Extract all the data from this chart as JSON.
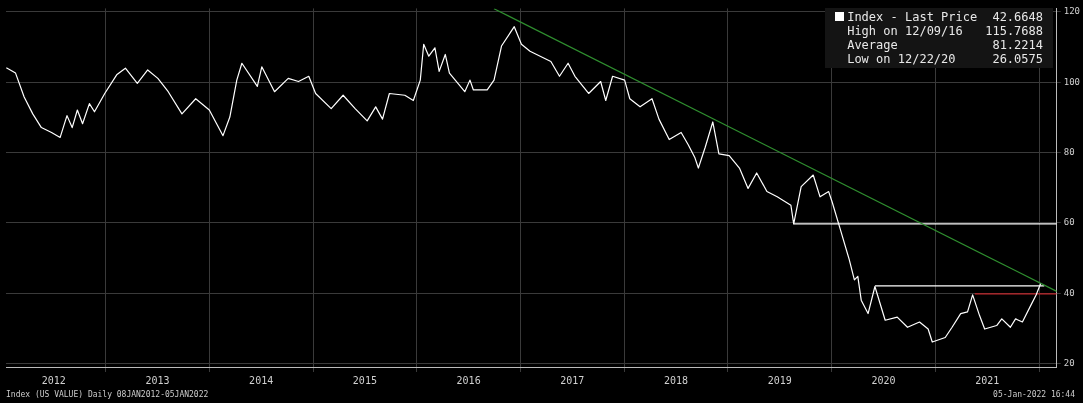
{
  "chart_data": {
    "type": "line",
    "xlim": [
      2012.04,
      2022.17
    ],
    "ylim": [
      19,
      121
    ],
    "xticks": [
      {
        "value": 2012.5,
        "label": "2012"
      },
      {
        "value": 2013,
        "label": null
      },
      {
        "value": 2013.5,
        "label": "2013"
      },
      {
        "value": 2014,
        "label": null
      },
      {
        "value": 2014.5,
        "label": "2014"
      },
      {
        "value": 2015,
        "label": null
      },
      {
        "value": 2015.5,
        "label": "2015"
      },
      {
        "value": 2016,
        "label": null
      },
      {
        "value": 2016.5,
        "label": "2016"
      },
      {
        "value": 2017,
        "label": null
      },
      {
        "value": 2017.5,
        "label": "2017"
      },
      {
        "value": 2018,
        "label": null
      },
      {
        "value": 2018.5,
        "label": "2018"
      },
      {
        "value": 2019,
        "label": null
      },
      {
        "value": 2019.5,
        "label": "2019"
      },
      {
        "value": 2020,
        "label": null
      },
      {
        "value": 2020.5,
        "label": "2020"
      },
      {
        "value": 2021,
        "label": null
      },
      {
        "value": 2021.5,
        "label": "2021"
      },
      {
        "value": 2022,
        "label": null
      }
    ],
    "yticks": [
      20,
      40,
      60,
      80,
      100,
      120
    ],
    "grid": true,
    "legend": "top right",
    "marker": "none",
    "line_style": "solid",
    "series": [
      {
        "name": "Index - Last Price",
        "color": "#ffffff",
        "x": [
          2012.043,
          2012.132,
          2012.215,
          2012.298,
          2012.381,
          2012.479,
          2012.562,
          2012.628,
          2012.678,
          2012.728,
          2012.778,
          2012.844,
          2012.893,
          2012.992,
          2013.107,
          2013.191,
          2013.306,
          2013.406,
          2013.504,
          2013.604,
          2013.736,
          2013.869,
          2014.0,
          2014.132,
          2014.198,
          2014.265,
          2014.314,
          2014.463,
          2014.506,
          2014.629,
          2014.761,
          2014.86,
          2014.959,
          2015.025,
          2015.175,
          2015.29,
          2015.406,
          2015.522,
          2015.604,
          2015.67,
          2015.736,
          2015.885,
          2015.967,
          2016.034,
          2016.067,
          2016.116,
          2016.175,
          2016.216,
          2016.275,
          2016.315,
          2016.463,
          2016.513,
          2016.546,
          2016.679,
          2016.745,
          2016.817,
          2016.94,
          2017.009,
          2017.092,
          2017.293,
          2017.376,
          2017.459,
          2017.525,
          2017.657,
          2017.773,
          2017.822,
          2017.888,
          2018.004,
          2018.054,
          2018.153,
          2018.268,
          2018.335,
          2018.434,
          2018.549,
          2018.616,
          2018.682,
          2018.715,
          2018.781,
          2018.854,
          2018.913,
          2019.012,
          2019.111,
          2019.194,
          2019.277,
          2019.376,
          2019.475,
          2019.607,
          2019.634,
          2019.706,
          2019.822,
          2019.888,
          2019.971,
          2020.004,
          2020.087,
          2020.169,
          2020.219,
          2020.252,
          2020.285,
          2020.351,
          2020.417,
          2020.516,
          2020.632,
          2020.731,
          2020.847,
          2020.93,
          2020.97,
          2021.095,
          2021.161,
          2021.244,
          2021.31,
          2021.359,
          2021.425,
          2021.475,
          2021.591,
          2021.64,
          2021.723,
          2021.773,
          2021.839,
          2021.921,
          2021.971,
          2022.014
        ],
        "values": [
          104.1,
          102.6,
          95.8,
          91.0,
          87.1,
          85.7,
          84.3,
          90.5,
          87.1,
          92.1,
          88.2,
          93.9,
          91.6,
          96.8,
          102.1,
          104.0,
          99.7,
          103.5,
          101.1,
          97.3,
          91.0,
          95.3,
          92.1,
          84.8,
          90.1,
          100.6,
          105.4,
          98.8,
          104.4,
          97.3,
          101.1,
          100.2,
          101.7,
          96.8,
          92.5,
          96.3,
          92.5,
          89.0,
          93.0,
          89.5,
          96.8,
          96.3,
          94.8,
          100.6,
          110.8,
          107.4,
          109.8,
          103.1,
          107.9,
          102.6,
          97.3,
          100.6,
          97.8,
          97.8,
          100.6,
          110.3,
          115.8,
          110.8,
          108.8,
          105.9,
          101.7,
          105.4,
          101.7,
          96.8,
          100.2,
          94.8,
          101.7,
          100.6,
          95.3,
          93.0,
          95.3,
          89.5,
          83.7,
          85.7,
          82.3,
          78.5,
          75.6,
          81.5,
          88.7,
          79.6,
          79.1,
          75.6,
          69.8,
          74.2,
          68.9,
          67.4,
          65.0,
          59.7,
          70.3,
          73.6,
          67.4,
          68.9,
          66.0,
          57.8,
          49.6,
          43.8,
          44.8,
          38.0,
          34.2,
          41.9,
          32.3,
          33.2,
          30.3,
          31.8,
          29.8,
          26.1,
          27.4,
          30.3,
          34.2,
          34.7,
          39.5,
          33.7,
          29.8,
          30.8,
          32.7,
          30.3,
          32.7,
          31.8,
          36.6,
          39.5,
          42.7
        ]
      },
      {
        "color": "#2f8f2f",
        "x": [
          2016.745,
          2022.17
        ],
        "values": [
          120.9,
          40.5
        ]
      },
      {
        "color": "#ffffff",
        "x": [
          2019.634,
          2022.17
        ],
        "values": [
          59.7,
          59.7
        ]
      },
      {
        "color": "#ffffff",
        "x": [
          2020.417,
          2022.05
        ],
        "values": [
          42.1,
          42.1
        ]
      },
      {
        "color": "#c0262b",
        "x": [
          2021.38,
          2022.17
        ],
        "values": [
          39.8,
          39.8
        ]
      }
    ],
    "annotations": [
      "42.6648",
      "High on 12/09/16",
      "115.7688",
      "Average",
      "81.2214",
      "Low on 12/22/20",
      "26.0575",
      "Index (US VALUE)  Daily 08JAN2012-05JAN2022",
      "05-Jan-2022 16:44"
    ]
  }
}
